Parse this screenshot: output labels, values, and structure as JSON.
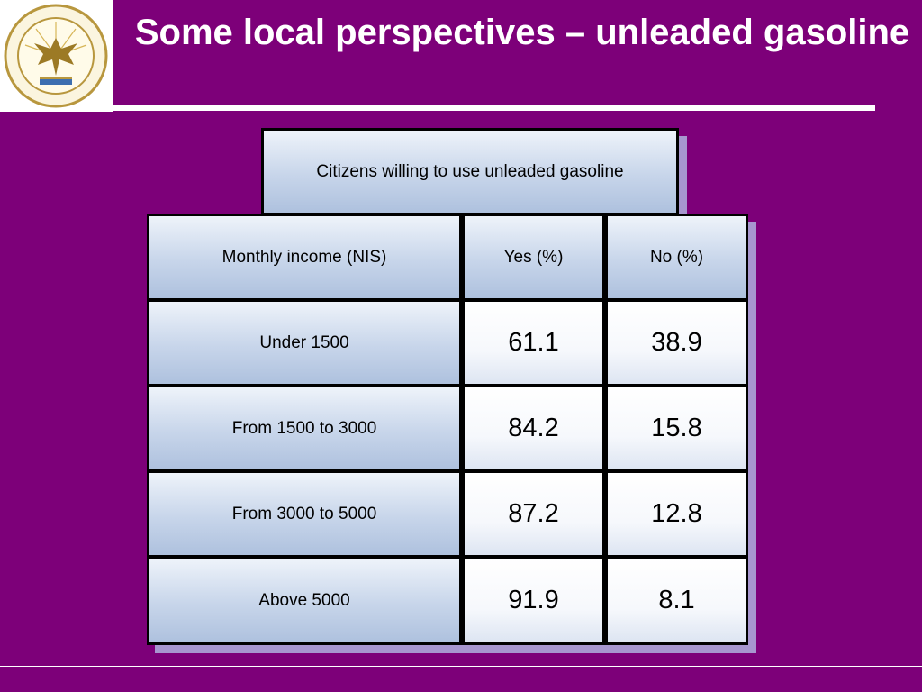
{
  "slide": {
    "title": "Some local perspectives – unleaded gasoline"
  },
  "table": {
    "caption": "Citizens willing to use unleaded gasoline",
    "headers": [
      "Monthly income (NIS)",
      "Yes (%)",
      "No (%)"
    ],
    "rows": [
      {
        "income": "Under 1500",
        "yes": "61.1",
        "no": "38.9"
      },
      {
        "income": "From 1500 to 3000",
        "yes": "84.2",
        "no": "15.8"
      },
      {
        "income": "From 3000 to 5000",
        "yes": "87.2",
        "no": "12.8"
      },
      {
        "income": "Above 5000",
        "yes": "91.9",
        "no": "8.1"
      }
    ]
  },
  "colors": {
    "background": "#7d0079",
    "header_fill": "#c7d5ea",
    "border": "#000000",
    "shadow": "#a796cf"
  }
}
